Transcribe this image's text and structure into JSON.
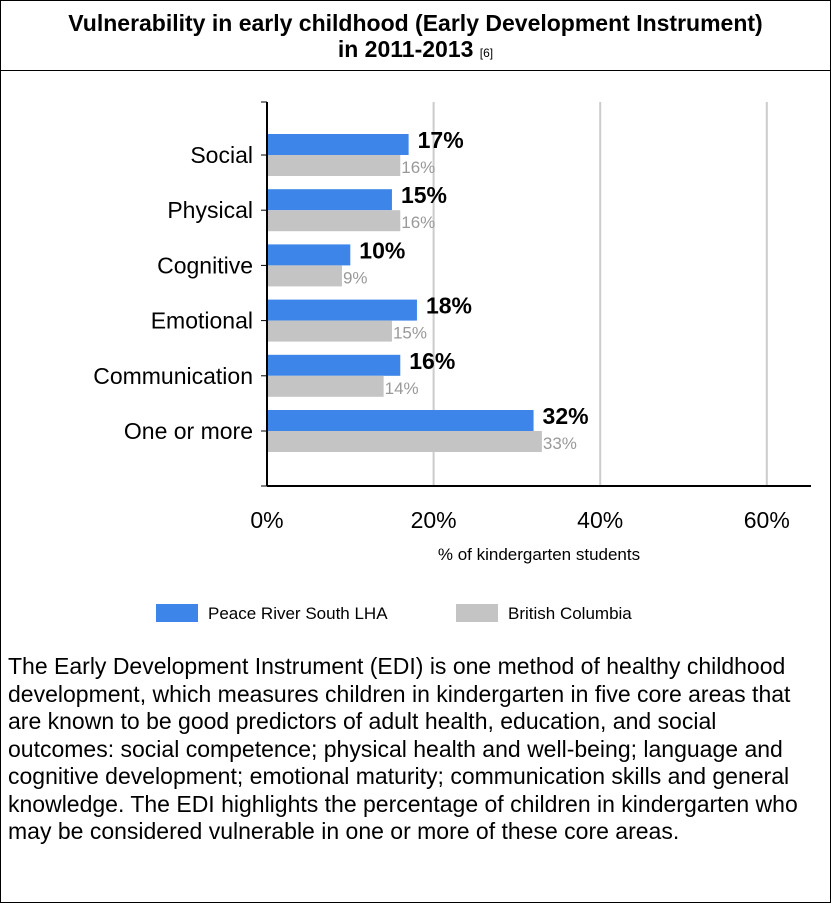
{
  "title": {
    "line1": "Vulnerability in early childhood (Early Development Instrument)",
    "line2": "in 2011-2013",
    "reference": "[6]"
  },
  "chart_data": {
    "type": "bar",
    "orientation": "horizontal",
    "categories": [
      "Social",
      "Physical",
      "Cognitive",
      "Emotional",
      "Communication",
      "One or more"
    ],
    "series": [
      {
        "name": "Peace River South LHA",
        "values": [
          17,
          15,
          10,
          18,
          16,
          32
        ],
        "labels": [
          "17%",
          "15%",
          "10%",
          "18%",
          "16%",
          "32%"
        ],
        "color": "#3d85e8",
        "label_color": "#000000"
      },
      {
        "name": "British Columbia",
        "values": [
          16,
          16,
          9,
          15,
          14,
          33
        ],
        "labels": [
          "16%",
          "16%",
          "9%",
          "15%",
          "14%",
          "33%"
        ],
        "color": "#c4c4c4",
        "label_color": "#999999"
      }
    ],
    "xlim": [
      0,
      65
    ],
    "x_ticks": [
      0,
      20,
      40,
      60
    ],
    "x_tick_labels": [
      "0%",
      "20%",
      "40%",
      "60%"
    ],
    "xlabel": "% of kindergarten students",
    "grid": true,
    "legend_position": "bottom"
  },
  "description": "The Early Development Instrument (EDI) is one method of healthy childhood development, which measures children in kindergarten in five core areas that are known to be good predictors of adult health, education, and social outcomes: social competence; physical health and well-being; language and cognitive development; emotional maturity; communication skills and general knowledge. The EDI highlights the percentage of children in kindergarten who may be considered vulnerable in one or more of these core areas."
}
